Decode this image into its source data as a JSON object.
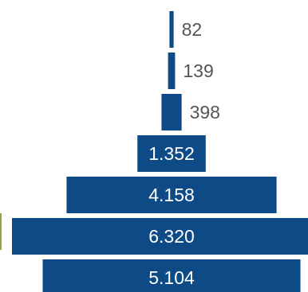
{
  "chart_data": {
    "type": "bar",
    "orientation": "horizontal",
    "layout": "funnel",
    "bar_color": "#0e4a86",
    "inside_label_color": "#ffffff",
    "outside_label_color": "#555555",
    "accent_edge_color": "#9aa036",
    "categories": [],
    "values": [
      82,
      139,
      398,
      1352,
      4158,
      6320,
      5104
    ],
    "labels": [
      "82",
      "139",
      "398",
      "1.352",
      "4.158",
      "6.320",
      "5.104"
    ]
  }
}
